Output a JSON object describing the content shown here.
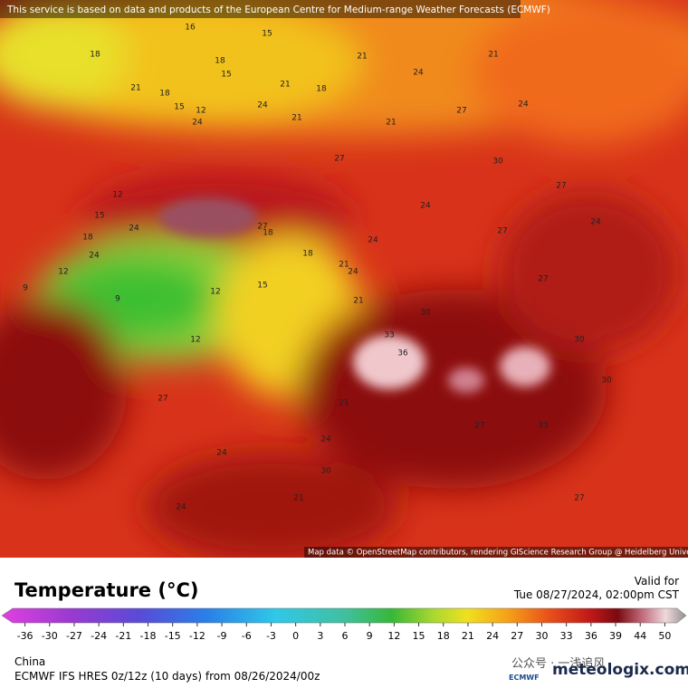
{
  "header": {
    "attribution": "This service is based on data and products of the European Centre for Medium-range Weather Forecasts (ECMWF)"
  },
  "map": {
    "credit": "Map data © OpenStreetMap contributors, rendering GIScience Research Group @ Heidelberg University",
    "labels": [
      16,
      15,
      18,
      18,
      21,
      15,
      18,
      21,
      24,
      21,
      21,
      24,
      21,
      18,
      12,
      15,
      24,
      27,
      21,
      12,
      15,
      18,
      24,
      24,
      27,
      24,
      21,
      18,
      12,
      9,
      12,
      9,
      12,
      15,
      18,
      21,
      24,
      27,
      30,
      24,
      27,
      33,
      36,
      30,
      27,
      24,
      27,
      30,
      27,
      24,
      21,
      24,
      27,
      24,
      21,
      24,
      30,
      33,
      27,
      30
    ]
  },
  "legend": {
    "title": "Temperature (°C)",
    "valid_label": "Valid for",
    "valid_time": "Tue 08/27/2024, 02:00pm CST",
    "ticks": [
      -36,
      -30,
      -27,
      -24,
      -21,
      -18,
      -15,
      -12,
      -9,
      -6,
      -3,
      0,
      3,
      6,
      9,
      12,
      15,
      18,
      21,
      24,
      27,
      30,
      33,
      36,
      39,
      44,
      50
    ]
  },
  "footer": {
    "region": "China",
    "model": "ECMWF IFS HRES 0z/12z (10 days) from 08/26/2024/00z",
    "brand": "meteologix.com",
    "ecmwf": "ECMWF",
    "wechat": "公众号 · 一浅追风"
  }
}
